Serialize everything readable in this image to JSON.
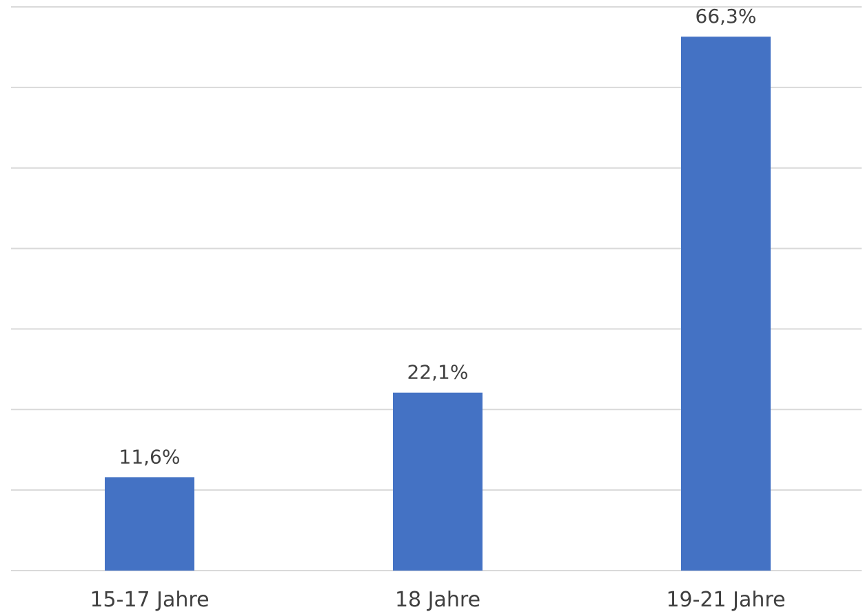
{
  "chart_data": {
    "type": "bar",
    "categories": [
      "15-17 Jahre",
      "18 Jahre",
      "19-21 Jahre"
    ],
    "values": [
      11.6,
      22.1,
      66.3
    ],
    "data_labels": [
      "11,6%",
      "22,1%",
      "66,3%"
    ],
    "title": "",
    "xlabel": "",
    "ylabel": "",
    "ylim": [
      0,
      70
    ],
    "grid": true,
    "y_axis_labels_shown": false,
    "legend": "none",
    "bar_color": "#4472c4"
  }
}
